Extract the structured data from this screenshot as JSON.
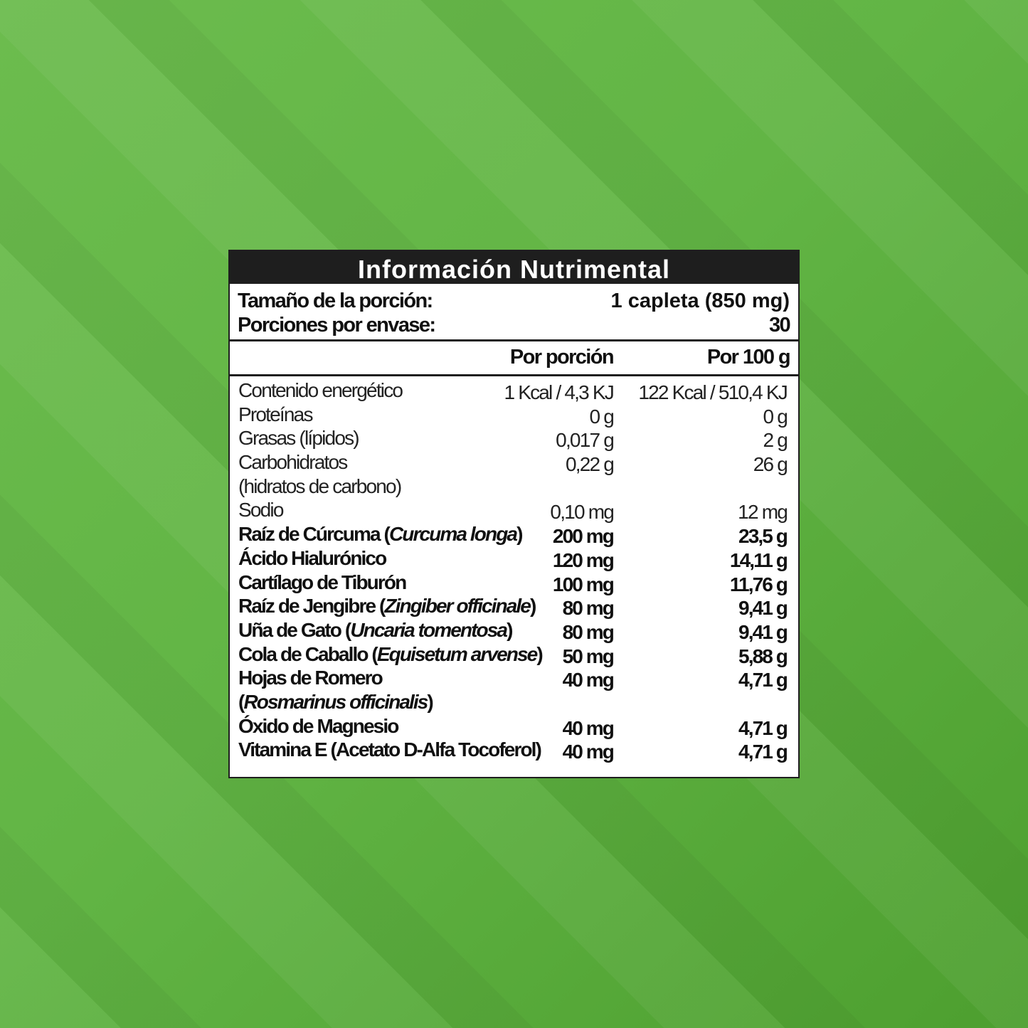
{
  "title": "Información Nutrimental",
  "serving": {
    "size_label": "Tamaño de la porción:",
    "size_value": "1 capleta (850 mg)",
    "count_label": "Porciones por envase:",
    "count_value": "30"
  },
  "columns": {
    "per_portion": "Por porción",
    "per_100g": "Por 100 g"
  },
  "rows": [
    {
      "name": "Contenido energético",
      "per_portion": "1 Kcal / 4,3 KJ",
      "per_100g": "122 Kcal / 510,4 KJ",
      "bold": false
    },
    {
      "name": "Proteínas",
      "per_portion": "0 g",
      "per_100g": "0 g",
      "bold": false
    },
    {
      "name": "Grasas (lípidos)",
      "per_portion": "0,017 g",
      "per_100g": "2 g",
      "bold": false
    },
    {
      "name": "Carbohidratos",
      "per_portion": "0,22 g",
      "per_100g": "26 g",
      "bold": false
    },
    {
      "name": " (hidratos de carbono)",
      "bold": false
    },
    {
      "name": "Sodio",
      "per_portion": "0,10 mg",
      "per_100g": "12 mg",
      "bold": false
    },
    {
      "name": "Raíz de Cúrcuma (",
      "italic": "Curcuma longa",
      "suffix": ")",
      "per_portion": "200 mg",
      "per_100g": "23,5 g",
      "bold": true
    },
    {
      "name": "Ácido Hialurónico",
      "per_portion": "120 mg",
      "per_100g": "14,11 g",
      "bold": true
    },
    {
      "name": "Cartílago de Tiburón",
      "per_portion": "100 mg",
      "per_100g": "11,76 g",
      "bold": true
    },
    {
      "name": "Raíz de Jengibre (",
      "italic": "Zingiber officinale",
      "suffix": ")",
      "per_portion": "80 mg",
      "per_100g": "9,41 g",
      "bold": true
    },
    {
      "name": "Uña de Gato (",
      "italic": "Uncaria tomentosa",
      "suffix": ")",
      "per_portion": "80 mg",
      "per_100g": "9,41 g",
      "bold": true
    },
    {
      "name": "Cola de Caballo (",
      "italic": "Equisetum arvense",
      "suffix": ")",
      "per_portion": "50 mg",
      "per_100g": "5,88 g",
      "bold": true
    },
    {
      "name": "Hojas de Romero",
      "per_portion": "40 mg",
      "per_100g": "4,71 g",
      "bold": true
    },
    {
      "name": "(",
      "italic": "Rosmarinus officinalis",
      "suffix": ")",
      "bold": true
    },
    {
      "name": "Óxido de Magnesio",
      "per_portion": "40 mg",
      "per_100g": "4,71 g",
      "bold": true
    },
    {
      "name": "Vitamina E (Acetato D-Alfa Tocoferol)",
      "per_portion": "40 mg",
      "per_100g": "4,71 g",
      "bold": true
    }
  ]
}
